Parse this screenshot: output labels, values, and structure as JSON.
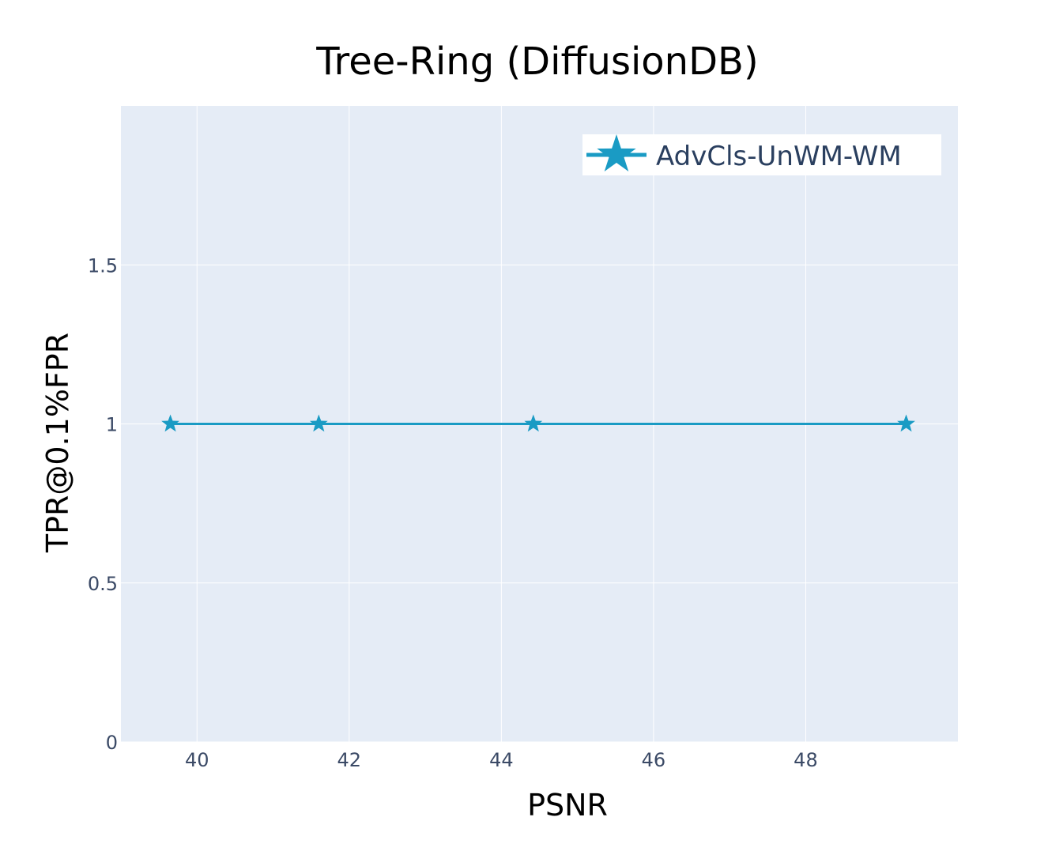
{
  "chart_data": {
    "type": "line",
    "title": "Tree-Ring (DiffusionDB)",
    "xlabel": "PSNR",
    "ylabel": "TPR@0.1%FPR",
    "xlim": [
      39,
      50
    ],
    "ylim": [
      0,
      2
    ],
    "x_ticks": [
      40,
      42,
      44,
      46,
      48
    ],
    "y_ticks": [
      0,
      0.5,
      1,
      1.5
    ],
    "y_tick_labels": [
      "0",
      "0.5",
      "1",
      "1.5"
    ],
    "grid": true,
    "legend_position": "top-right",
    "series": [
      {
        "name": "AdvCls-UnWM-WM",
        "color": "#1a9bc4",
        "marker": "star",
        "x": [
          39.65,
          41.6,
          44.42,
          49.32
        ],
        "y": [
          1,
          1,
          1,
          1
        ]
      }
    ]
  },
  "colors": {
    "plot_background": "#e5ecf6",
    "grid": "#ffffff",
    "series": "#1a9bc4"
  }
}
